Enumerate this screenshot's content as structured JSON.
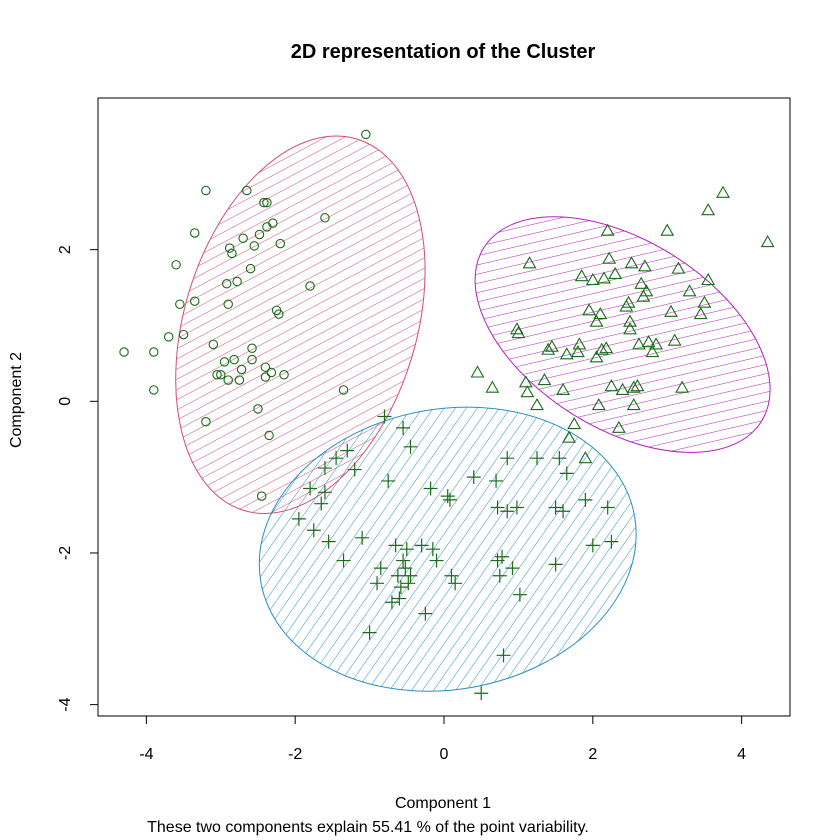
{
  "chart_data": {
    "type": "scatter",
    "title": "2D representation of the Cluster",
    "xlabel": "Component 1",
    "ylabel": "Component 2",
    "subtitle": "These two components explain 55.41 % of the point variability.",
    "xlim": [
      -4.65,
      4.65
    ],
    "ylim": [
      -4.15,
      4.0
    ],
    "xticks": [
      -4,
      -2,
      0,
      2,
      4
    ],
    "yticks": [
      -4,
      -2,
      0,
      2
    ],
    "grid": false,
    "point_color": "#1a6b1a",
    "clusters": [
      {
        "marker": "circle",
        "ellipse": {
          "cx": -1.93,
          "cy": 1.01,
          "rx": 1.56,
          "ry": 2.56,
          "angle_deg": 17,
          "color": "#d64b72"
        },
        "points": [
          [
            -4.3,
            0.65
          ],
          [
            -3.9,
            0.65
          ],
          [
            -3.9,
            0.15
          ],
          [
            -3.7,
            0.85
          ],
          [
            -3.6,
            1.8
          ],
          [
            -3.55,
            1.28
          ],
          [
            -3.5,
            0.88
          ],
          [
            -3.35,
            1.32
          ],
          [
            -3.35,
            2.22
          ],
          [
            -3.2,
            2.78
          ],
          [
            -3.2,
            -0.27
          ],
          [
            -3.1,
            0.75
          ],
          [
            -3.05,
            0.35
          ],
          [
            -3.0,
            0.35
          ],
          [
            -2.95,
            0.52
          ],
          [
            -2.92,
            1.55
          ],
          [
            -2.9,
            1.28
          ],
          [
            -2.9,
            0.28
          ],
          [
            -2.88,
            2.02
          ],
          [
            -2.85,
            1.95
          ],
          [
            -2.82,
            0.55
          ],
          [
            -2.78,
            1.58
          ],
          [
            -2.75,
            0.28
          ],
          [
            -2.72,
            0.42
          ],
          [
            -2.7,
            2.15
          ],
          [
            -2.65,
            2.78
          ],
          [
            -2.6,
            1.75
          ],
          [
            -2.58,
            0.55
          ],
          [
            -2.58,
            0.7
          ],
          [
            -2.55,
            2.05
          ],
          [
            -2.5,
            -0.1
          ],
          [
            -2.48,
            2.2
          ],
          [
            -2.45,
            -1.25
          ],
          [
            -2.42,
            2.62
          ],
          [
            -2.4,
            0.32
          ],
          [
            -2.4,
            0.45
          ],
          [
            -2.38,
            2.62
          ],
          [
            -2.38,
            2.3
          ],
          [
            -2.35,
            -0.45
          ],
          [
            -2.32,
            0.38
          ],
          [
            -2.3,
            2.35
          ],
          [
            -2.25,
            1.2
          ],
          [
            -2.22,
            1.15
          ],
          [
            -2.2,
            2.08
          ],
          [
            -2.15,
            0.35
          ],
          [
            -1.8,
            1.52
          ],
          [
            -1.6,
            2.42
          ],
          [
            -1.35,
            0.15
          ],
          [
            -1.05,
            3.52
          ]
        ]
      },
      {
        "marker": "triangle",
        "ellipse": {
          "cx": 2.4,
          "cy": 0.88,
          "rx": 2.2,
          "ry": 1.24,
          "angle_deg": 32,
          "color": "#b71fbf"
        },
        "points": [
          [
            0.45,
            0.38
          ],
          [
            0.65,
            0.18
          ],
          [
            0.98,
            0.95
          ],
          [
            1.0,
            0.9
          ],
          [
            1.1,
            0.25
          ],
          [
            1.12,
            0.12
          ],
          [
            1.15,
            1.82
          ],
          [
            1.25,
            -0.05
          ],
          [
            1.35,
            0.28
          ],
          [
            1.4,
            0.68
          ],
          [
            1.45,
            0.72
          ],
          [
            1.6,
            0.15
          ],
          [
            1.65,
            0.62
          ],
          [
            1.68,
            -0.48
          ],
          [
            1.75,
            -0.3
          ],
          [
            1.8,
            0.65
          ],
          [
            1.82,
            0.75
          ],
          [
            1.85,
            1.65
          ],
          [
            1.9,
            -0.75
          ],
          [
            1.95,
            1.2
          ],
          [
            2.0,
            1.6
          ],
          [
            2.05,
            1.05
          ],
          [
            2.05,
            0.58
          ],
          [
            2.08,
            -0.05
          ],
          [
            2.1,
            1.15
          ],
          [
            2.12,
            0.68
          ],
          [
            2.15,
            1.62
          ],
          [
            2.18,
            0.7
          ],
          [
            2.2,
            2.25
          ],
          [
            2.22,
            1.88
          ],
          [
            2.25,
            0.2
          ],
          [
            2.3,
            1.68
          ],
          [
            2.35,
            -0.35
          ],
          [
            2.4,
            0.15
          ],
          [
            2.45,
            1.25
          ],
          [
            2.48,
            1.3
          ],
          [
            2.5,
            1.05
          ],
          [
            2.5,
            0.95
          ],
          [
            2.52,
            1.82
          ],
          [
            2.55,
            0.18
          ],
          [
            2.55,
            -0.05
          ],
          [
            2.6,
            0.2
          ],
          [
            2.62,
            0.75
          ],
          [
            2.65,
            1.55
          ],
          [
            2.68,
            1.38
          ],
          [
            2.7,
            1.78
          ],
          [
            2.72,
            1.45
          ],
          [
            2.75,
            0.78
          ],
          [
            2.8,
            0.65
          ],
          [
            2.85,
            0.75
          ],
          [
            3.0,
            2.25
          ],
          [
            3.05,
            1.18
          ],
          [
            3.1,
            0.8
          ],
          [
            3.15,
            1.75
          ],
          [
            3.2,
            0.18
          ],
          [
            3.3,
            1.45
          ],
          [
            3.45,
            1.15
          ],
          [
            3.5,
            1.3
          ],
          [
            3.55,
            1.6
          ],
          [
            3.55,
            2.52
          ],
          [
            3.75,
            2.75
          ],
          [
            4.35,
            2.1
          ]
        ]
      },
      {
        "marker": "plus",
        "ellipse": {
          "cx": 0.05,
          "cy": -1.95,
          "rx": 2.55,
          "ry": 1.85,
          "angle_deg": -10,
          "color": "#2a8fc4"
        },
        "points": [
          [
            -1.95,
            -1.55
          ],
          [
            -1.8,
            -1.15
          ],
          [
            -1.75,
            -1.7
          ],
          [
            -1.65,
            -1.35
          ],
          [
            -1.6,
            -0.88
          ],
          [
            -1.6,
            -1.2
          ],
          [
            -1.55,
            -1.85
          ],
          [
            -1.45,
            -0.75
          ],
          [
            -1.35,
            -2.1
          ],
          [
            -1.3,
            -0.65
          ],
          [
            -1.2,
            -0.9
          ],
          [
            -1.1,
            -1.8
          ],
          [
            -1.0,
            -3.05
          ],
          [
            -0.9,
            -2.4
          ],
          [
            -0.85,
            -2.2
          ],
          [
            -0.8,
            -0.2
          ],
          [
            -0.75,
            -1.05
          ],
          [
            -0.7,
            -2.65
          ],
          [
            -0.65,
            -1.9
          ],
          [
            -0.62,
            -2.3
          ],
          [
            -0.6,
            -2.6
          ],
          [
            -0.58,
            -2.45
          ],
          [
            -0.55,
            -0.35
          ],
          [
            -0.55,
            -2.1
          ],
          [
            -0.52,
            -2.2
          ],
          [
            -0.5,
            -1.95
          ],
          [
            -0.48,
            -2.4
          ],
          [
            -0.45,
            -2.3
          ],
          [
            -0.45,
            -0.6
          ],
          [
            -0.3,
            -1.9
          ],
          [
            -0.25,
            -2.8
          ],
          [
            -0.18,
            -1.15
          ],
          [
            -0.15,
            -1.95
          ],
          [
            -0.1,
            -2.1
          ],
          [
            0.05,
            -1.25
          ],
          [
            0.08,
            -1.3
          ],
          [
            0.1,
            -2.3
          ],
          [
            0.15,
            -2.4
          ],
          [
            0.4,
            -1.0
          ],
          [
            0.5,
            -3.85
          ],
          [
            0.7,
            -1.05
          ],
          [
            0.72,
            -1.4
          ],
          [
            0.72,
            -2.1
          ],
          [
            0.75,
            -2.3
          ],
          [
            0.78,
            -2.05
          ],
          [
            0.8,
            -3.35
          ],
          [
            0.85,
            -0.75
          ],
          [
            0.85,
            -1.45
          ],
          [
            0.92,
            -2.2
          ],
          [
            0.98,
            -1.4
          ],
          [
            1.02,
            -2.55
          ],
          [
            1.25,
            -0.75
          ],
          [
            1.5,
            -1.4
          ],
          [
            1.5,
            -2.15
          ],
          [
            1.55,
            -0.75
          ],
          [
            1.6,
            -1.45
          ],
          [
            1.65,
            -0.95
          ],
          [
            1.9,
            -1.3
          ],
          [
            2.0,
            -1.9
          ],
          [
            2.2,
            -1.4
          ],
          [
            2.25,
            -1.85
          ]
        ]
      }
    ]
  }
}
